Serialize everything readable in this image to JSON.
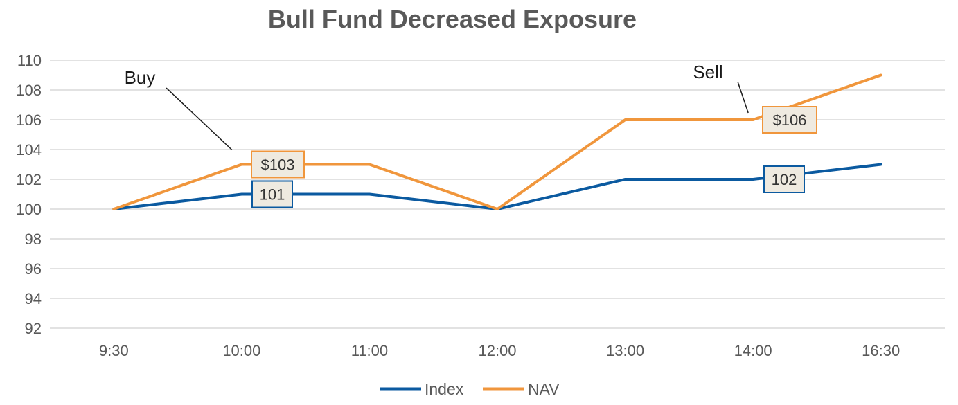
{
  "chart_data": {
    "type": "line",
    "title": "Bull Fund Decreased Exposure",
    "xlabel": "",
    "ylabel": "",
    "categories": [
      "9:30",
      "10:00",
      "11:00",
      "12:00",
      "13:00",
      "14:00",
      "16:30"
    ],
    "series": [
      {
        "name": "Index",
        "color": "#0b5aa0",
        "values": [
          100,
          101,
          101,
          100,
          102,
          102,
          103
        ]
      },
      {
        "name": "NAV",
        "color": "#f0963c",
        "values": [
          100,
          103,
          103,
          100,
          106,
          106,
          109
        ]
      }
    ],
    "ylim": [
      92,
      110
    ],
    "yticks": [
      92,
      94,
      96,
      98,
      100,
      102,
      104,
      106,
      108,
      110
    ],
    "grid": true,
    "legend": "bottom",
    "data_labels": [
      {
        "series": "NAV",
        "category": "10:00",
        "text": "$103"
      },
      {
        "series": "Index",
        "category": "10:00",
        "text": "101"
      },
      {
        "series": "NAV",
        "category": "14:00",
        "text": "$106"
      },
      {
        "series": "Index",
        "category": "14:00",
        "text": "102"
      }
    ],
    "annotations": [
      {
        "text": "Buy",
        "category": "10:00",
        "series": "NAV"
      },
      {
        "text": "Sell",
        "category": "14:00",
        "series": "NAV"
      }
    ]
  }
}
